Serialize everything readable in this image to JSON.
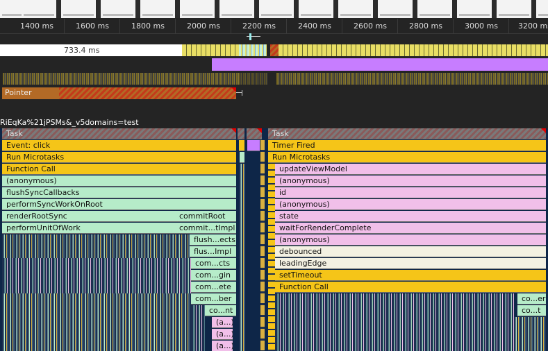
{
  "ruler": {
    "ticks": [
      "1400 ms",
      "1600 ms",
      "1800 ms",
      "2000 ms",
      "2200 ms",
      "2400 ms",
      "2600 ms",
      "2800 ms",
      "3000 ms",
      "3200 ms"
    ]
  },
  "overview": {
    "gap_label": "733.4 ms",
    "interaction_label": "Pointer"
  },
  "thread": {
    "label": "RiEqKa%21jPSMs&_v5domains=test"
  },
  "flame_left": [
    {
      "label": "Task",
      "color": "gray"
    },
    {
      "label": "Event: click",
      "color": "yellow"
    },
    {
      "label": "Run Microtasks",
      "color": "yellow"
    },
    {
      "label": "Function Call",
      "color": "yellow"
    },
    {
      "label": "(anonymous)",
      "color": "green"
    },
    {
      "label": "flushSyncCallbacks",
      "color": "green"
    },
    {
      "label": "performSyncWorkOnRoot",
      "color": "green"
    },
    {
      "label": "renderRootSync",
      "color": "green"
    },
    {
      "label": "performUnitOfWork",
      "color": "green"
    }
  ],
  "flame_left_sub": [
    {
      "label": "commitRoot"
    },
    {
      "label": "commit...tImpl"
    },
    {
      "label": "flush...ects"
    },
    {
      "label": "flus...Impl"
    },
    {
      "label": "com...cts"
    },
    {
      "label": "com...gin"
    },
    {
      "label": "com...ete"
    },
    {
      "label": "com...ber"
    },
    {
      "label": "co...nt"
    },
    {
      "label": "(a...)"
    },
    {
      "label": "(a...)"
    },
    {
      "label": "(a...)"
    }
  ],
  "flame_right": [
    {
      "label": "Task",
      "color": "gray"
    },
    {
      "label": "Timer Fired",
      "color": "yellow"
    },
    {
      "label": "Run Microtasks",
      "color": "yellow"
    },
    {
      "label": "updateViewModel",
      "color": "pink"
    },
    {
      "label": "(anonymous)",
      "color": "pink"
    },
    {
      "label": "id",
      "color": "pink"
    },
    {
      "label": "(anonymous)",
      "color": "pink"
    },
    {
      "label": "state",
      "color": "pink"
    },
    {
      "label": "waitForRenderComplete",
      "color": "pink"
    },
    {
      "label": "(anonymous)",
      "color": "pink"
    },
    {
      "label": "debounced",
      "color": "cream"
    },
    {
      "label": "leadingEdge",
      "color": "cream"
    },
    {
      "label": "setTimeout",
      "color": "yellow"
    },
    {
      "label": "Function Call",
      "color": "yellow"
    }
  ],
  "flame_right_sub": [
    {
      "label": "co...er"
    },
    {
      "label": "co...t"
    }
  ],
  "colors": {
    "task_yellow": "#f5c518",
    "react_green": "#b6ecc9",
    "script_pink": "#f1bfe9",
    "layout_purple": "#c77dff",
    "long_task_red": "#e00000"
  }
}
